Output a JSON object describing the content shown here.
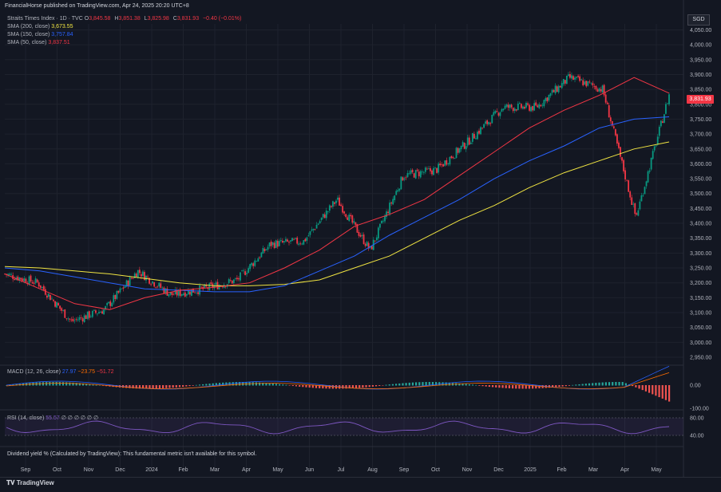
{
  "header": {
    "publisher": "FinancialHorse published on TradingView.com, Apr 24, 2025 20:20 UTC+8"
  },
  "symbol": {
    "title": "Straits Times Index · 1D · TVC",
    "open_label": "O",
    "open": "3,845.58",
    "high_label": "H",
    "high": "3,851.38",
    "low_label": "L",
    "low": "3,825.98",
    "close_label": "C",
    "close": "3,831.93",
    "change": "−0.40 (−0.01%)",
    "currency": "SGD"
  },
  "indicators": {
    "sma200": {
      "label": "SMA (200, close)",
      "value": "3,673.55",
      "color": "#f0e442"
    },
    "sma150": {
      "label": "SMA (150, close)",
      "value": "3,757.84",
      "color": "#2962ff"
    },
    "sma50": {
      "label": "SMA (50, close)",
      "value": "3,837.51",
      "color": "#f23645"
    }
  },
  "macd": {
    "label": "MACD (12, 26, close)",
    "v1": "27.97",
    "v2": "−23.75",
    "v3": "−51.72",
    "axis": [
      "0.00",
      "-100.00"
    ]
  },
  "rsi": {
    "label": "RSI (14, close)",
    "value": "55.57",
    "extras": "∅ ∅ ∅ ∅ ∅ ∅",
    "axis": [
      "80.00",
      "40.00"
    ]
  },
  "dividend": {
    "text": "Dividend yield % (Calculated by TradingView): This fundamental metric isn't available for this symbol."
  },
  "footer": {
    "logo_text": "TradingView"
  },
  "chart_data": {
    "type": "candlestick",
    "x_axis_labels": [
      "Sep",
      "Oct",
      "Nov",
      "Dec",
      "2024",
      "Feb",
      "Mar",
      "Apr",
      "May",
      "Jun",
      "Jul",
      "Aug",
      "Sep",
      "Oct",
      "Nov",
      "Dec",
      "2025",
      "Feb",
      "Mar",
      "Apr",
      "May"
    ],
    "y_axis_labels": [
      4050,
      4000,
      3950,
      3900,
      3850,
      3800,
      3750,
      3700,
      3650,
      3600,
      3550,
      3500,
      3450,
      3400,
      3350,
      3300,
      3250,
      3200,
      3150,
      3100,
      3050,
      3000,
      2950
    ],
    "ylim": [
      2950,
      4070
    ],
    "last_price": "3,831.93",
    "price_path": [
      [
        "Sep",
        3230
      ],
      [
        "Oct",
        3200
      ],
      [
        "Nov",
        3070
      ],
      [
        "Dec",
        3110
      ],
      [
        "2024",
        3240
      ],
      [
        "Feb",
        3160
      ],
      [
        "Mar",
        3180
      ],
      [
        "Apr",
        3210
      ],
      [
        "May",
        3330
      ],
      [
        "Jun",
        3340
      ],
      [
        "Jul",
        3480
      ],
      [
        "Aug",
        3310
      ],
      [
        "Sep",
        3560
      ],
      [
        "Oct",
        3580
      ],
      [
        "Nov",
        3680
      ],
      [
        "Dec",
        3790
      ],
      [
        "2025",
        3790
      ],
      [
        "Feb",
        3890
      ],
      [
        "Mar",
        3850
      ],
      [
        "Apr",
        3420
      ],
      [
        "May",
        3831.93
      ]
    ],
    "series": [
      {
        "name": "SMA (200, close)",
        "color": "#f0e442",
        "values": [
          3255,
          3250,
          3240,
          3230,
          3215,
          3200,
          3190,
          3190,
          3195,
          3210,
          3250,
          3290,
          3350,
          3410,
          3460,
          3520,
          3570,
          3610,
          3650,
          3673.55
        ]
      },
      {
        "name": "SMA (150, close)",
        "color": "#2962ff",
        "values": [
          3250,
          3240,
          3220,
          3200,
          3180,
          3175,
          3170,
          3170,
          3190,
          3240,
          3290,
          3360,
          3420,
          3480,
          3550,
          3610,
          3660,
          3720,
          3750,
          3757.84
        ]
      },
      {
        "name": "SMA (50, close)",
        "color": "#f23645",
        "values": [
          3230,
          3180,
          3130,
          3110,
          3150,
          3175,
          3185,
          3200,
          3250,
          3310,
          3390,
          3430,
          3480,
          3560,
          3640,
          3720,
          3780,
          3830,
          3890,
          3837.51
        ]
      }
    ]
  }
}
